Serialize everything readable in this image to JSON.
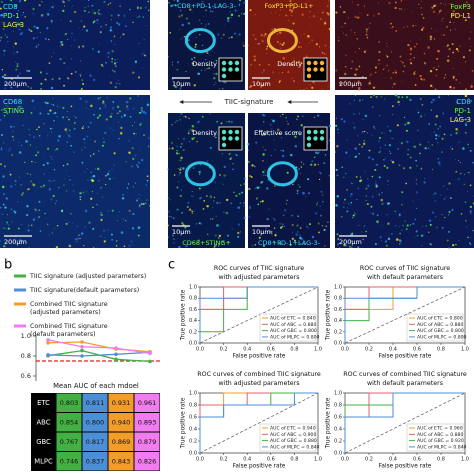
{
  "panel_a": {
    "tiles": [
      {
        "labels": [
          {
            "text": "CD8",
            "color": "#33e0ff"
          },
          {
            "text": "PD-1",
            "color": "#66ff44"
          },
          {
            "text": "LAG-3",
            "color": "#ffee33"
          }
        ],
        "scale": "200μm",
        "background": "#0b1d5a"
      },
      {
        "caption": {
          "text": "CD8+PD-1-LAG-3-",
          "color": "#33e0ff"
        },
        "scale": "10μm",
        "inset": "Density",
        "background": "#0a1540"
      },
      {
        "caption": {
          "text": "FoxP3+PD-L1+",
          "color": "#ffee33"
        },
        "scale": "10μm",
        "inset": "Density",
        "background": "#7a1a10"
      },
      {
        "labels": [
          {
            "text": "FoxP3",
            "color": "#66ff44"
          },
          {
            "text": "PD-L1",
            "color": "#ffee33"
          }
        ],
        "scale": "200μm",
        "background": "#3a0e1a"
      },
      {
        "labels": [
          {
            "text": "CD68",
            "color": "#33e0ff"
          },
          {
            "text": "STING",
            "color": "#66ff44"
          }
        ],
        "scale": "200μm",
        "background": "#0c2a6a"
      },
      {
        "caption": {
          "text": "CD68+STING+",
          "color": "#66ff44"
        },
        "scale": "10μm",
        "inset": "Density",
        "background": "#081a4a"
      },
      {
        "caption": {
          "text": "CD8+PD-1+LAG-3-",
          "color": "#33e0ff"
        },
        "scale": "10μm",
        "inset": "Effective score",
        "background": "#0a1545"
      },
      {
        "labels": [
          {
            "text": "CD8",
            "color": "#33e0ff"
          },
          {
            "text": "PD-1",
            "color": "#66ff44"
          },
          {
            "text": "LAG-3",
            "color": "#ffee33"
          }
        ],
        "scale": "200μm",
        "background": "#0b1a52"
      }
    ],
    "center": "TIIC-signature"
  },
  "panel_b": {
    "label": "b",
    "legend": [
      {
        "lines": [
          "TIIC signature (adjusted parameters)"
        ],
        "color": "#44b044"
      },
      {
        "lines": [
          "TIIC signature(default parameters)"
        ],
        "color": "#4d8fd6"
      },
      {
        "lines": [
          "Combined TIIC signature",
          "(adjusted parameters)"
        ],
        "color": "#f39c29"
      },
      {
        "lines": [
          "Combined TIIC signature",
          "(default parameters)"
        ],
        "color": "#f07cf0"
      }
    ],
    "chart": {
      "ylim": [
        0.55,
        1.02
      ],
      "yticks": [
        0.6,
        0.8,
        {
          "value": 1,
          "label": "1.0"
        }
      ],
      "threshold": 0.75,
      "threshold_color": "#e02020"
    },
    "table": {
      "title": "Mean AUC of each mdoel",
      "rows": [
        {
          "model": "ETC",
          "values": [
            0.803,
            0.811,
            0.931,
            0.961
          ]
        },
        {
          "model": "ABC",
          "values": [
            0.854,
            {
              "value": 0.8,
              "label": "0.800"
            },
            {
              "value": 0.94,
              "label": "0.940"
            },
            0.893
          ]
        },
        {
          "model": "GBC",
          "values": [
            0.767,
            0.817,
            0.869,
            0.879
          ]
        },
        {
          "model": "MLPC",
          "values": [
            0.746,
            0.837,
            0.843,
            0.826
          ]
        }
      ]
    }
  },
  "panel_c": {
    "label": "c",
    "xlabel": "False positive rate",
    "ylabel": "True positive rate",
    "xlim": [
      0,
      1
    ],
    "ylim": [
      0,
      1
    ],
    "ticks": [
      {
        "value": 0,
        "label": "0.0"
      },
      0.2,
      0.4,
      0.6,
      0.8,
      {
        "value": 1,
        "label": "1.0"
      }
    ],
    "plots": [
      {
        "title": [
          "ROC curves of TIIC signature",
          "with adjusted parameters"
        ],
        "series": [
          {
            "legend": "AUC of ETC = 0.840",
            "color": "#f39c29",
            "x": [
              0,
              0,
              0.2,
              0.2,
              0.4,
              0.4,
              1
            ],
            "y": [
              0,
              0.6,
              0.6,
              0.8,
              0.8,
              1,
              1
            ]
          },
          {
            "legend": "AUC of ABC = 0.880",
            "color": "#e8606a",
            "x": [
              0,
              0,
              0.2,
              0.2,
              1
            ],
            "y": [
              0,
              0.6,
              0.6,
              1,
              1
            ]
          },
          {
            "legend": "AUC of GBC = 0.800",
            "color": "#44b044",
            "x": [
              0,
              0,
              0.2,
              0.2,
              0.4,
              0.4,
              1
            ],
            "y": [
              0,
              0.2,
              0.2,
              0.6,
              0.6,
              1,
              1
            ]
          },
          {
            "legend": "AUC of MLPC = 0.800",
            "color": "#4d8fd6",
            "x": [
              0,
              0,
              0.4,
              0.4,
              1
            ],
            "y": [
              0,
              0.8,
              0.8,
              1,
              1
            ]
          }
        ]
      },
      {
        "title": [
          "ROC curves of TIIC signature",
          "with default parameters"
        ],
        "series": [
          {
            "legend": "AUC of ETC = 0.800",
            "color": "#f39c29",
            "x": [
              0,
              0,
              0.4,
              0.4,
              1
            ],
            "y": [
              0,
              0.6,
              0.6,
              1,
              1
            ]
          },
          {
            "legend": "AUC of ABC = 0.880",
            "color": "#e8606a",
            "x": [
              0,
              0,
              0.2,
              0.2,
              1
            ],
            "y": [
              0,
              0.6,
              0.6,
              1,
              1
            ]
          },
          {
            "legend": "AUC of GBC = 0.800",
            "color": "#44b044",
            "x": [
              0,
              0,
              0.2,
              0.2,
              0.6,
              0.6,
              1
            ],
            "y": [
              0,
              0.4,
              0.4,
              0.8,
              0.8,
              1,
              1
            ]
          },
          {
            "legend": "AUC of MLPC = 0.800",
            "color": "#4d8fd6",
            "x": [
              0,
              0,
              0.6,
              0.6,
              1
            ],
            "y": [
              0,
              0.8,
              0.8,
              1,
              1
            ]
          }
        ]
      },
      {
        "title": [
          "ROC curves of combined TIIC signature",
          "with adjusted parameters"
        ],
        "series": [
          {
            "legend": "AUC of ETC = 0.940",
            "color": "#f39c29",
            "x": [
              0,
              0,
              0.2,
              0.2,
              1
            ],
            "y": [
              0,
              0.8,
              0.8,
              1,
              1
            ]
          },
          {
            "legend": "AUC of ABC = 0.900",
            "color": "#e8606a",
            "x": [
              0,
              0,
              0.4,
              0.4,
              1
            ],
            "y": [
              0,
              0.8,
              0.8,
              1,
              1
            ]
          },
          {
            "legend": "AUC of GBC = 0.880",
            "color": "#44b044",
            "x": [
              0,
              0,
              0.2,
              0.2,
              0.6,
              0.6,
              1
            ],
            "y": [
              0,
              0.6,
              0.6,
              0.8,
              0.8,
              1,
              1
            ]
          },
          {
            "legend": "AUC of MLPC = 0.840",
            "color": "#4d8fd6",
            "x": [
              0,
              0,
              0.2,
              0.2,
              0.8,
              0.8,
              1
            ],
            "y": [
              0,
              0.6,
              0.6,
              0.8,
              0.8,
              1,
              1
            ]
          }
        ]
      },
      {
        "title": [
          "ROC curves of combined TIIC signature",
          "with default parameters"
        ],
        "series": [
          {
            "legend": "AUC of ETC = 0.960",
            "color": "#f39c29",
            "x": [
              0,
              0,
              0.2,
              0.2,
              1
            ],
            "y": [
              0,
              0.8,
              0.8,
              1,
              1
            ]
          },
          {
            "legend": "AUC of ABC = 0.880",
            "color": "#e8606a",
            "x": [
              0,
              0,
              0.2,
              0.2,
              1
            ],
            "y": [
              0,
              0.6,
              0.6,
              1,
              1
            ]
          },
          {
            "legend": "AUC of GBC = 0.920",
            "color": "#44b044",
            "x": [
              0,
              0,
              0.4,
              0.4,
              1
            ],
            "y": [
              0,
              0.8,
              0.8,
              1,
              1
            ]
          },
          {
            "legend": "AUC of MLPC = 0.840",
            "color": "#4d8fd6",
            "x": [
              0,
              0,
              0.4,
              0.4,
              1
            ],
            "y": [
              0,
              0.6,
              0.6,
              1,
              1
            ]
          }
        ]
      }
    ]
  }
}
